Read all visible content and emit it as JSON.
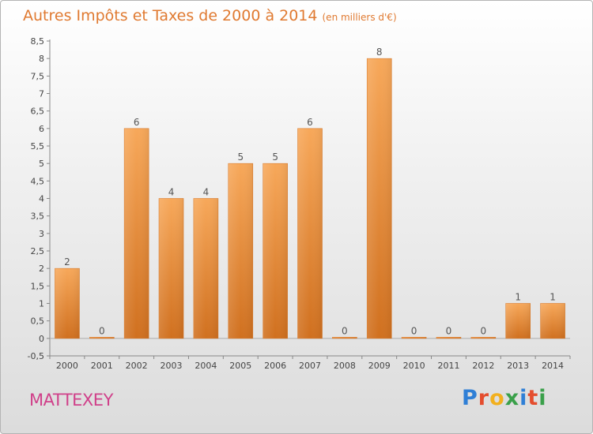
{
  "title": "Autres Impôts et Taxes de 2000 à 2014",
  "subtitle": "(en milliers d'€)",
  "town": "MATTEXEY",
  "brand": {
    "letters": [
      "P",
      "r",
      "o",
      "x",
      "i",
      "t",
      "i"
    ],
    "colors": [
      "#2f7fd6",
      "#e44d2e",
      "#f2b01e",
      "#3aa04a",
      "#2f7fd6",
      "#e44d2e",
      "#3aa04a"
    ]
  },
  "colors": {
    "accent": "#e07a31",
    "bar_top": "#f7a85a",
    "bar_bottom": "#d0701f",
    "town": "#d0408a"
  },
  "chart_data": {
    "type": "bar",
    "categories": [
      "2000",
      "2001",
      "2002",
      "2003",
      "2004",
      "2005",
      "2006",
      "2007",
      "2008",
      "2009",
      "2010",
      "2011",
      "2012",
      "2013",
      "2014"
    ],
    "values": [
      2,
      0,
      6,
      4,
      4,
      5,
      5,
      6,
      0,
      8,
      0,
      0,
      0,
      1,
      1
    ],
    "data_labels": [
      "2",
      "0",
      "6",
      "4",
      "4",
      "5",
      "5",
      "6",
      "0",
      "8",
      "0",
      "0",
      "0",
      "1",
      "1"
    ],
    "yticks": [
      "-0,5",
      "0",
      "0,5",
      "1",
      "1,5",
      "2",
      "2,5",
      "3",
      "3,5",
      "4",
      "4,5",
      "5",
      "5,5",
      "6",
      "6,5",
      "7",
      "7,5",
      "8",
      "8,5"
    ],
    "ytick_values": [
      -0.5,
      0,
      0.5,
      1,
      1.5,
      2,
      2.5,
      3,
      3.5,
      4,
      4.5,
      5,
      5.5,
      6,
      6.5,
      7,
      7.5,
      8,
      8.5
    ],
    "ylim": [
      -0.5,
      8.5
    ],
    "grid": false
  }
}
